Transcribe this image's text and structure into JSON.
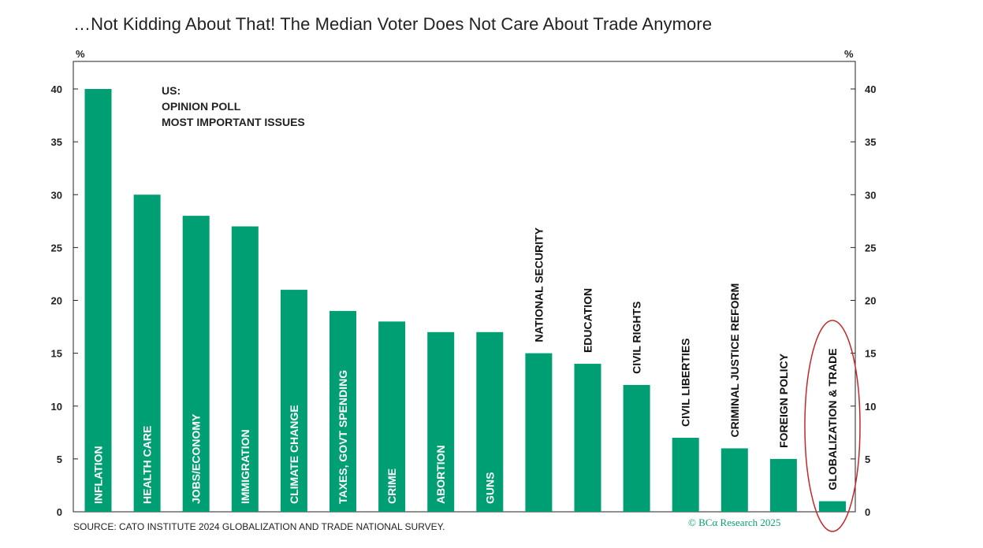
{
  "header": {
    "title": "…Not Kidding About That! The Median Voter Does Not Care About Trade Anymore",
    "left_unit": "%",
    "right_unit": "%"
  },
  "annotation": {
    "line1": "US:",
    "line2": "OPINION POLL",
    "line3": "MOST IMPORTANT ISSUES"
  },
  "footer": {
    "source": "SOURCE: CATO INSTITUTE 2024 GLOBALIZATION AND TRADE NATIONAL SURVEY.",
    "logo": "© BCα Research 2025"
  },
  "colors": {
    "bar": "#009e73",
    "highlight_ellipse": "#c0282d",
    "axis": "#222222"
  },
  "chart_data": {
    "type": "bar",
    "categories": [
      "INFLATION",
      "HEALTH CARE",
      "JOBS/ECONOMY",
      "IMMIGRATION",
      "CLIMATE CHANGE",
      "TAXES, GOVT SPENDING",
      "CRIME",
      "ABORTION",
      "GUNS",
      "NATIONAL SECURITY",
      "EDUCATION",
      "CIVIL RIGHTS",
      "CIVIL LIBERTIES",
      "CRIMINAL JUSTICE REFORM",
      "FOREIGN POLICY",
      "GLOBALIZATION & TRADE"
    ],
    "values": [
      40,
      30,
      28,
      27,
      21,
      19,
      18,
      17,
      17,
      15,
      14,
      12,
      7,
      6,
      5,
      1
    ],
    "label_inside": [
      true,
      true,
      true,
      true,
      true,
      true,
      true,
      true,
      true,
      false,
      false,
      false,
      false,
      false,
      false,
      false
    ],
    "highlighted_category": "GLOBALIZATION & TRADE",
    "ylim": [
      0,
      40
    ],
    "yticks": [
      0,
      5,
      10,
      15,
      20,
      25,
      30,
      35,
      40
    ],
    "grid": false,
    "dual_y_axis": true
  }
}
